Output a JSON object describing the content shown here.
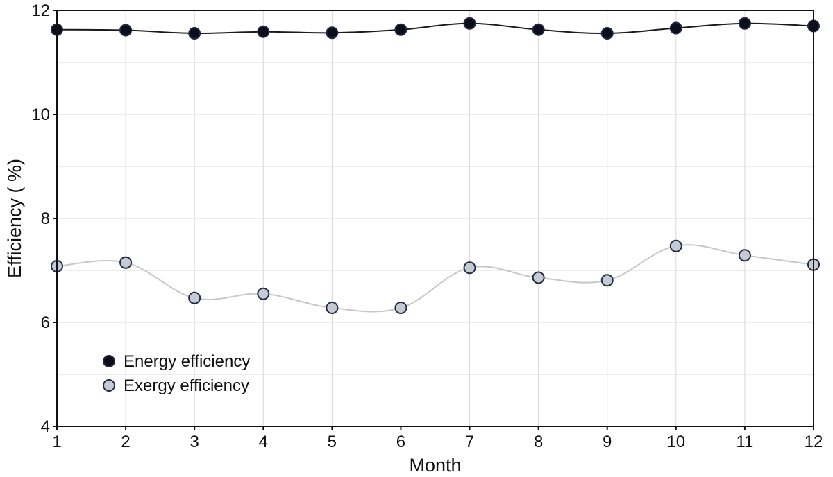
{
  "chart_data": {
    "type": "line",
    "title": "",
    "xlabel": "Month",
    "ylabel": "Efficiency ( %)",
    "categories": [
      "1",
      "2",
      "3",
      "4",
      "5",
      "6",
      "7",
      "8",
      "9",
      "10",
      "11",
      "12"
    ],
    "x": [
      1,
      2,
      3,
      4,
      5,
      6,
      7,
      8,
      9,
      10,
      11,
      12
    ],
    "xlim": [
      1,
      12
    ],
    "ylim": [
      4,
      12
    ],
    "y_ticks": [
      4,
      6,
      8,
      10,
      12
    ],
    "y_tick_labels": [
      "4",
      "6",
      "8",
      "10",
      "12"
    ],
    "grid": true,
    "legend_position": "bottom-left",
    "series": [
      {
        "name": "Energy efficiency",
        "values": [
          11.63,
          11.62,
          11.56,
          11.59,
          11.57,
          11.63,
          11.75,
          11.63,
          11.56,
          11.66,
          11.75,
          11.7
        ],
        "line_color": "#1a1a1a",
        "marker_fill": "#0b0d18",
        "marker_stroke": "#1f2a44"
      },
      {
        "name": "Exergy efficiency",
        "values": [
          7.08,
          7.15,
          6.47,
          6.55,
          6.28,
          6.28,
          7.05,
          6.86,
          6.81,
          7.47,
          7.29,
          7.11
        ],
        "line_color": "#c7c7c7",
        "marker_fill": "#c6cad3",
        "marker_stroke": "#1f2a44"
      }
    ]
  }
}
